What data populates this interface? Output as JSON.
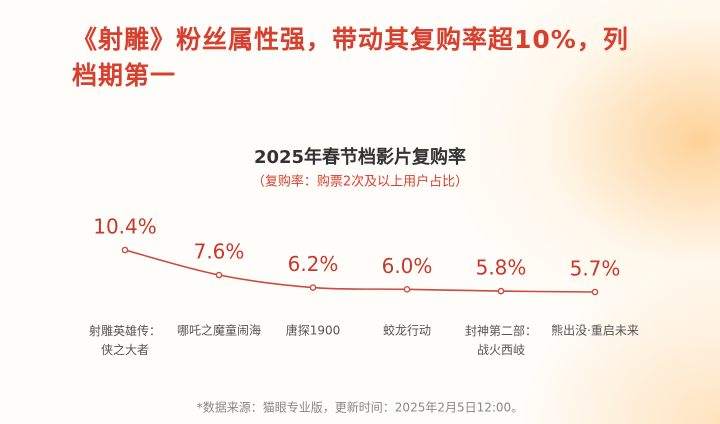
{
  "headline": "《射雕》粉丝属性强，带动其复购率超10%，列档期第一",
  "chart_data": {
    "type": "line",
    "title": "2025年春节档影片复购率",
    "subtitle": "（复购率：购票2次及以上用户占比）",
    "categories": [
      "射雕英雄传：\n侠之大者",
      "哪吒之魔童闹海",
      "唐探1900",
      "蛟龙行动",
      "封神第二部：\n战火西岐",
      "熊出没·重启未来"
    ],
    "values": [
      10.4,
      7.6,
      6.2,
      6.0,
      5.8,
      5.7
    ],
    "value_labels": [
      "10.4%",
      "7.6%",
      "6.2%",
      "6.0%",
      "5.8%",
      "5.7%"
    ],
    "color": "#cf4a3c"
  },
  "source": "*数据来源：猫眼专业版，更新时间：2025年2月5日12:00。"
}
